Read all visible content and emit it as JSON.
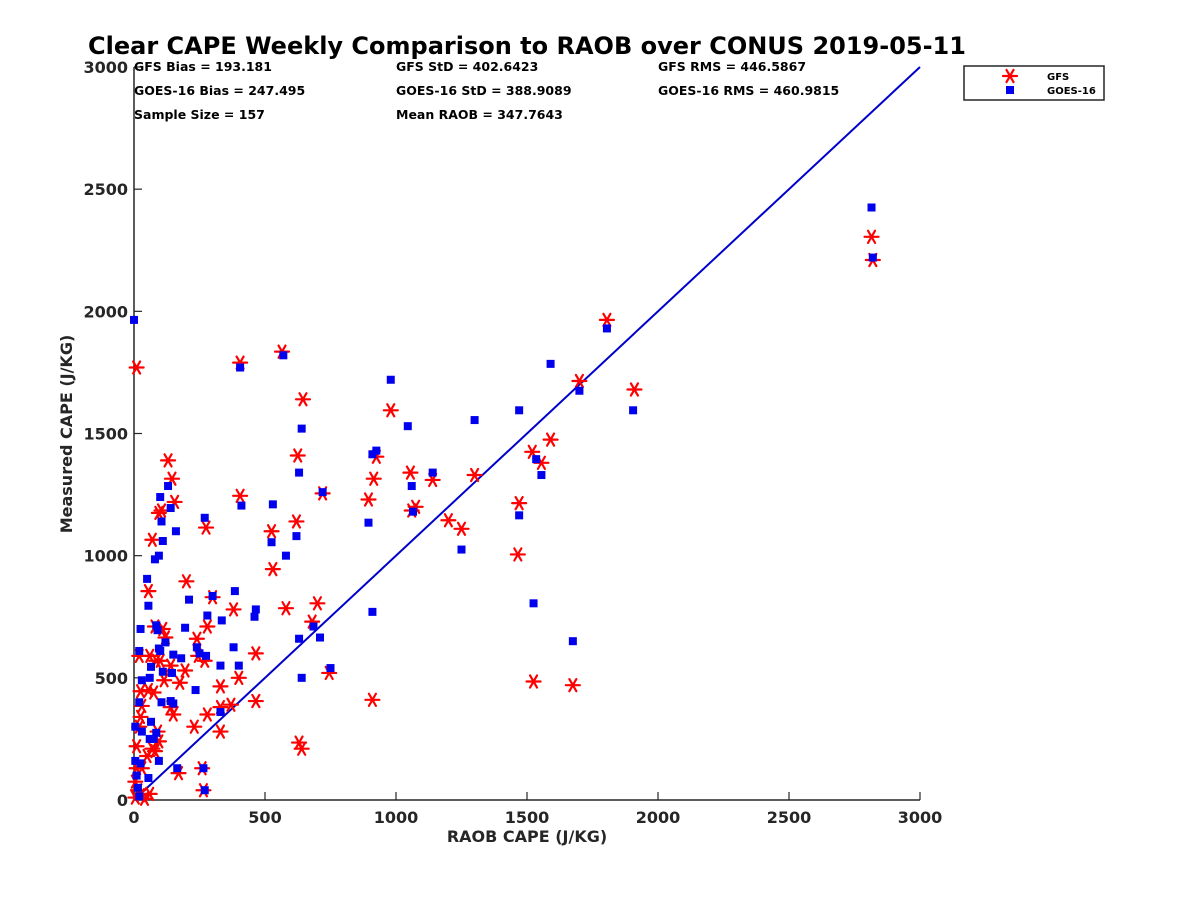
{
  "chart_data": {
    "type": "scatter",
    "title": "Clear CAPE Weekly Comparison to RAOB over CONUS 2019-05-11",
    "xlabel": "RAOB CAPE (J/KG)",
    "ylabel": "Measured CAPE (J/KG)",
    "xlim": [
      0,
      3000
    ],
    "ylim": [
      0,
      3000
    ],
    "xticks": [
      0,
      500,
      1000,
      1500,
      2000,
      2500,
      3000
    ],
    "yticks": [
      0,
      500,
      1000,
      1500,
      2000,
      2500,
      3000
    ],
    "grid": false,
    "legend_position": "top-right",
    "reference_line": {
      "x": [
        0,
        3000
      ],
      "y": [
        0,
        3000
      ],
      "color": "#0000cc"
    },
    "stats": [
      {
        "text": "GFS Bias = 193.181"
      },
      {
        "text": "GFS StD = 402.6423"
      },
      {
        "text": "GFS RMS = 446.5867"
      },
      {
        "text": "GOES-16 Bias = 247.495"
      },
      {
        "text": "GOES-16 StD = 388.9089"
      },
      {
        "text": "GOES-16 RMS = 460.9815"
      },
      {
        "text": "Sample Size = 157"
      },
      {
        "text": "Mean RAOB = 347.7643"
      }
    ],
    "series": [
      {
        "name": "GFS",
        "marker": "asterisk",
        "color": "#ff0000",
        "points": [
          [
            2815,
            2305
          ],
          [
            2820,
            2210
          ],
          [
            1805,
            1965
          ],
          [
            1910,
            1680
          ],
          [
            1700,
            1715
          ],
          [
            1590,
            1475
          ],
          [
            1520,
            1425
          ],
          [
            1555,
            1380
          ],
          [
            1470,
            1215
          ],
          [
            1465,
            1005
          ],
          [
            1525,
            485
          ],
          [
            1675,
            470
          ],
          [
            1300,
            1330
          ],
          [
            1250,
            1110
          ],
          [
            1200,
            1145
          ],
          [
            1140,
            1310
          ],
          [
            1060,
            1185
          ],
          [
            1075,
            1200
          ],
          [
            1055,
            1340
          ],
          [
            980,
            1595
          ],
          [
            925,
            1405
          ],
          [
            915,
            1315
          ],
          [
            895,
            1230
          ],
          [
            910,
            410
          ],
          [
            720,
            1255
          ],
          [
            700,
            805
          ],
          [
            680,
            730
          ],
          [
            645,
            1640
          ],
          [
            625,
            1410
          ],
          [
            620,
            1140
          ],
          [
            565,
            1835
          ],
          [
            580,
            785
          ],
          [
            525,
            1100
          ],
          [
            530,
            945
          ],
          [
            630,
            235
          ],
          [
            640,
            210
          ],
          [
            745,
            520
          ],
          [
            405,
            1790
          ],
          [
            405,
            1245
          ],
          [
            380,
            780
          ],
          [
            400,
            500
          ],
          [
            465,
            600
          ],
          [
            465,
            405
          ],
          [
            370,
            390
          ],
          [
            330,
            465
          ],
          [
            330,
            380
          ],
          [
            330,
            280
          ],
          [
            300,
            830
          ],
          [
            275,
            1115
          ],
          [
            280,
            710
          ],
          [
            270,
            570
          ],
          [
            245,
            590
          ],
          [
            240,
            660
          ],
          [
            230,
            300
          ],
          [
            260,
            130
          ],
          [
            265,
            40
          ],
          [
            280,
            350
          ],
          [
            200,
            895
          ],
          [
            195,
            530
          ],
          [
            175,
            480
          ],
          [
            170,
            110
          ],
          [
            155,
            1220
          ],
          [
            145,
            1315
          ],
          [
            130,
            1390
          ],
          [
            150,
            350
          ],
          [
            140,
            380
          ],
          [
            140,
            550
          ],
          [
            120,
            665
          ],
          [
            110,
            700
          ],
          [
            105,
            1185
          ],
          [
            95,
            1175
          ],
          [
            70,
            1065
          ],
          [
            80,
            710
          ],
          [
            55,
            855
          ],
          [
            85,
            570
          ],
          [
            100,
            570
          ],
          [
            115,
            490
          ],
          [
            60,
            590
          ],
          [
            55,
            450
          ],
          [
            75,
            440
          ],
          [
            90,
            280
          ],
          [
            95,
            240
          ],
          [
            80,
            200
          ],
          [
            70,
            210
          ],
          [
            50,
            180
          ],
          [
            30,
            130
          ],
          [
            20,
            590
          ],
          [
            25,
            445
          ],
          [
            30,
            385
          ],
          [
            25,
            340
          ],
          [
            20,
            300
          ],
          [
            10,
            220
          ],
          [
            10,
            130
          ],
          [
            5,
            75
          ],
          [
            15,
            40
          ],
          [
            25,
            20
          ],
          [
            5,
            10
          ],
          [
            40,
            5
          ],
          [
            10,
            1770
          ],
          [
            60,
            25
          ]
        ]
      },
      {
        "name": "GOES-16",
        "marker": "square",
        "color": "#0000ee",
        "points": [
          [
            2815,
            2425
          ],
          [
            2820,
            2220
          ],
          [
            1805,
            1930
          ],
          [
            1905,
            1595
          ],
          [
            1590,
            1785
          ],
          [
            1700,
            1675
          ],
          [
            1675,
            650
          ],
          [
            1525,
            805
          ],
          [
            1470,
            1595
          ],
          [
            1470,
            1165
          ],
          [
            1535,
            1395
          ],
          [
            1555,
            1330
          ],
          [
            1300,
            1555
          ],
          [
            1250,
            1025
          ],
          [
            1140,
            1340
          ],
          [
            1065,
            1180
          ],
          [
            1060,
            1285
          ],
          [
            1045,
            1530
          ],
          [
            980,
            1720
          ],
          [
            925,
            1430
          ],
          [
            910,
            1415
          ],
          [
            895,
            1135
          ],
          [
            910,
            770
          ],
          [
            720,
            1260
          ],
          [
            710,
            665
          ],
          [
            685,
            710
          ],
          [
            640,
            1520
          ],
          [
            630,
            1340
          ],
          [
            620,
            1080
          ],
          [
            640,
            500
          ],
          [
            630,
            660
          ],
          [
            570,
            1820
          ],
          [
            580,
            1000
          ],
          [
            530,
            1210
          ],
          [
            525,
            1055
          ],
          [
            750,
            540
          ],
          [
            405,
            1770
          ],
          [
            410,
            1205
          ],
          [
            385,
            855
          ],
          [
            400,
            550
          ],
          [
            465,
            780
          ],
          [
            460,
            750
          ],
          [
            380,
            625
          ],
          [
            335,
            735
          ],
          [
            330,
            550
          ],
          [
            330,
            360
          ],
          [
            300,
            835
          ],
          [
            270,
            1155
          ],
          [
            280,
            755
          ],
          [
            275,
            590
          ],
          [
            250,
            600
          ],
          [
            240,
            625
          ],
          [
            235,
            450
          ],
          [
            265,
            130
          ],
          [
            270,
            40
          ],
          [
            210,
            820
          ],
          [
            195,
            705
          ],
          [
            180,
            580
          ],
          [
            165,
            130
          ],
          [
            160,
            1100
          ],
          [
            140,
            1195
          ],
          [
            130,
            1285
          ],
          [
            150,
            595
          ],
          [
            145,
            520
          ],
          [
            150,
            395
          ],
          [
            140,
            405
          ],
          [
            120,
            645
          ],
          [
            100,
            1240
          ],
          [
            105,
            1140
          ],
          [
            110,
            1060
          ],
          [
            95,
            1000
          ],
          [
            80,
            985
          ],
          [
            85,
            715
          ],
          [
            90,
            695
          ],
          [
            50,
            905
          ],
          [
            55,
            795
          ],
          [
            95,
            620
          ],
          [
            100,
            610
          ],
          [
            110,
            525
          ],
          [
            65,
            545
          ],
          [
            60,
            500
          ],
          [
            105,
            400
          ],
          [
            85,
            275
          ],
          [
            95,
            160
          ],
          [
            75,
            250
          ],
          [
            65,
            320
          ],
          [
            60,
            250
          ],
          [
            55,
            90
          ],
          [
            25,
            700
          ],
          [
            20,
            610
          ],
          [
            30,
            490
          ],
          [
            20,
            400
          ],
          [
            30,
            280
          ],
          [
            25,
            150
          ],
          [
            5,
            300
          ],
          [
            5,
            160
          ],
          [
            10,
            100
          ],
          [
            15,
            50
          ],
          [
            20,
            15
          ],
          [
            0,
            1965
          ]
        ]
      }
    ]
  }
}
